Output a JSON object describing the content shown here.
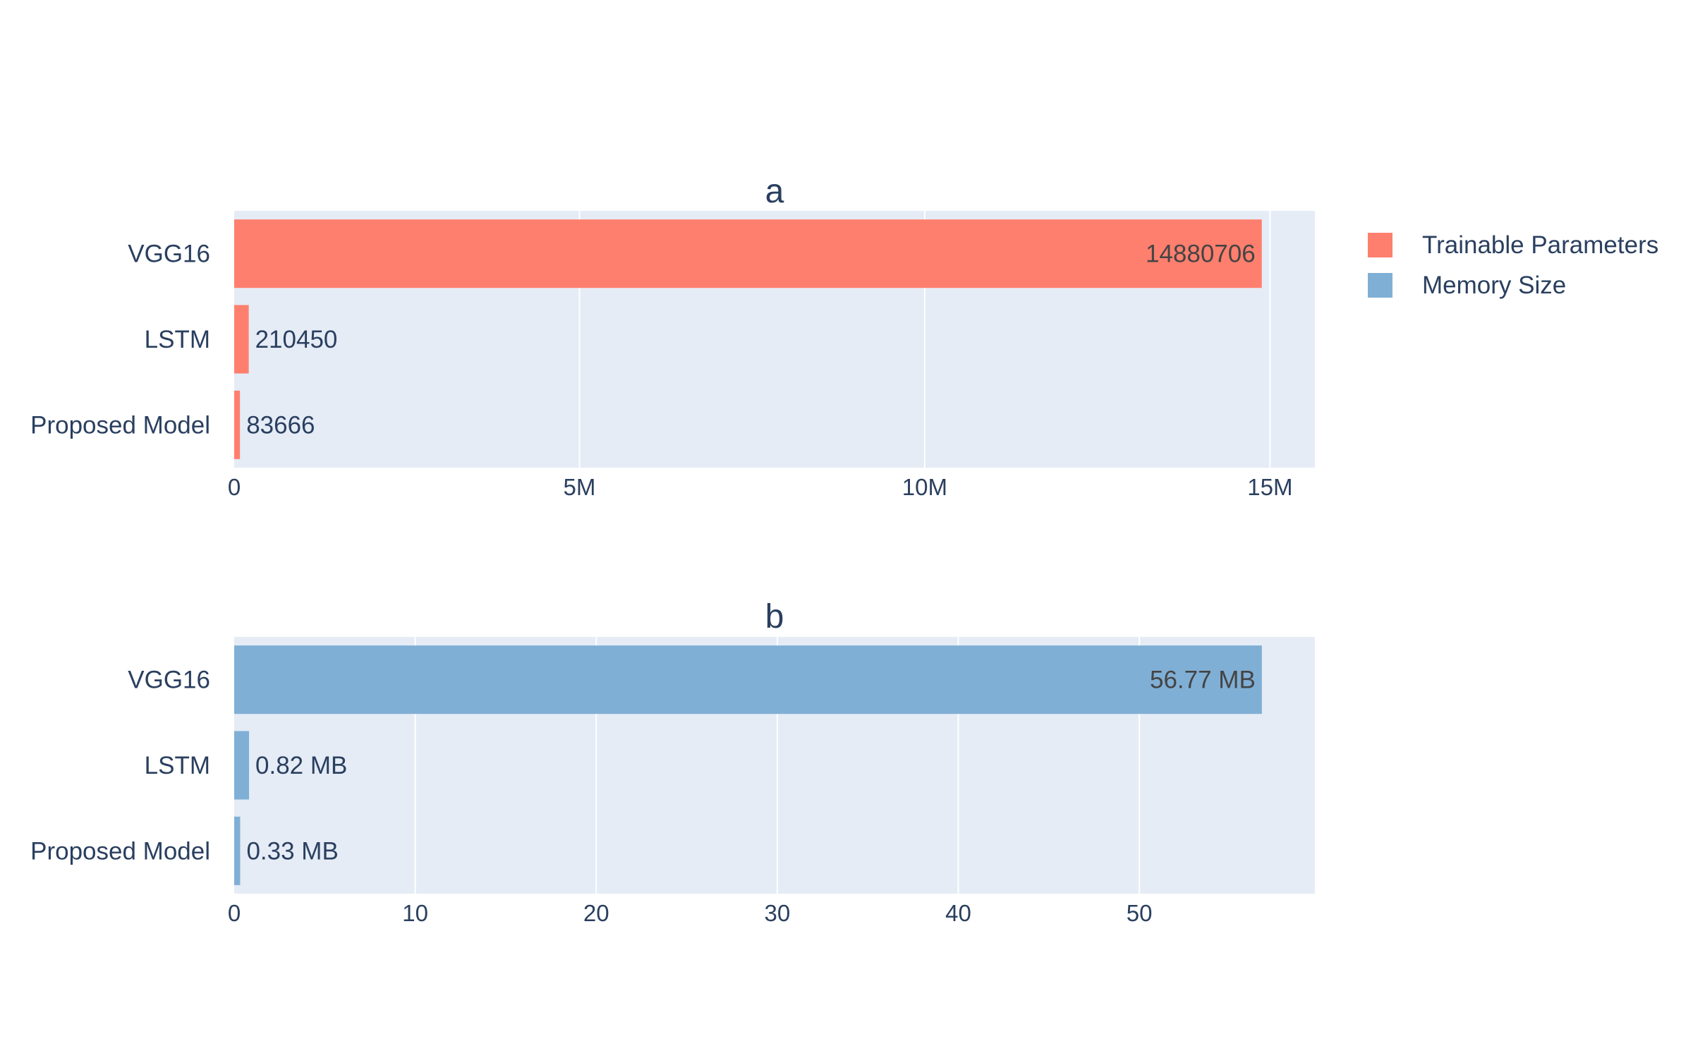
{
  "legend": {
    "position": "top-right",
    "items": [
      {
        "label": "Trainable Parameters",
        "color": "#ff7f6e"
      },
      {
        "label": "Memory Size",
        "color": "#80afd5"
      }
    ]
  },
  "colors": {
    "plot_background": "#e5ecf6",
    "grid": "#ffffff",
    "text": "#2a3f5f"
  },
  "chart_data": [
    {
      "type": "bar",
      "orientation": "horizontal",
      "title": "a",
      "series_name": "Trainable Parameters",
      "color": "#ff7f6e",
      "categories": [
        "VGG16",
        "LSTM",
        "Proposed Model"
      ],
      "values": [
        14880706,
        210450,
        83666
      ],
      "data_labels": [
        "14880706",
        "210450",
        "83666"
      ],
      "xlim": [
        0,
        15650000
      ],
      "x_ticks": [
        0,
        5000000,
        10000000,
        15000000
      ],
      "x_tick_labels": [
        "0",
        "5M",
        "10M",
        "15M"
      ],
      "grid": true
    },
    {
      "type": "bar",
      "orientation": "horizontal",
      "title": "b",
      "series_name": "Memory Size",
      "color": "#80afd5",
      "categories": [
        "VGG16",
        "LSTM",
        "Proposed Model"
      ],
      "values": [
        56.77,
        0.82,
        0.33
      ],
      "data_labels": [
        "56.77 MB",
        "0.82 MB",
        "0.33 MB"
      ],
      "xlim": [
        0,
        59.7
      ],
      "x_ticks": [
        0,
        10,
        20,
        30,
        40,
        50
      ],
      "x_tick_labels": [
        "0",
        "10",
        "20",
        "30",
        "40",
        "50"
      ],
      "grid": true
    }
  ]
}
